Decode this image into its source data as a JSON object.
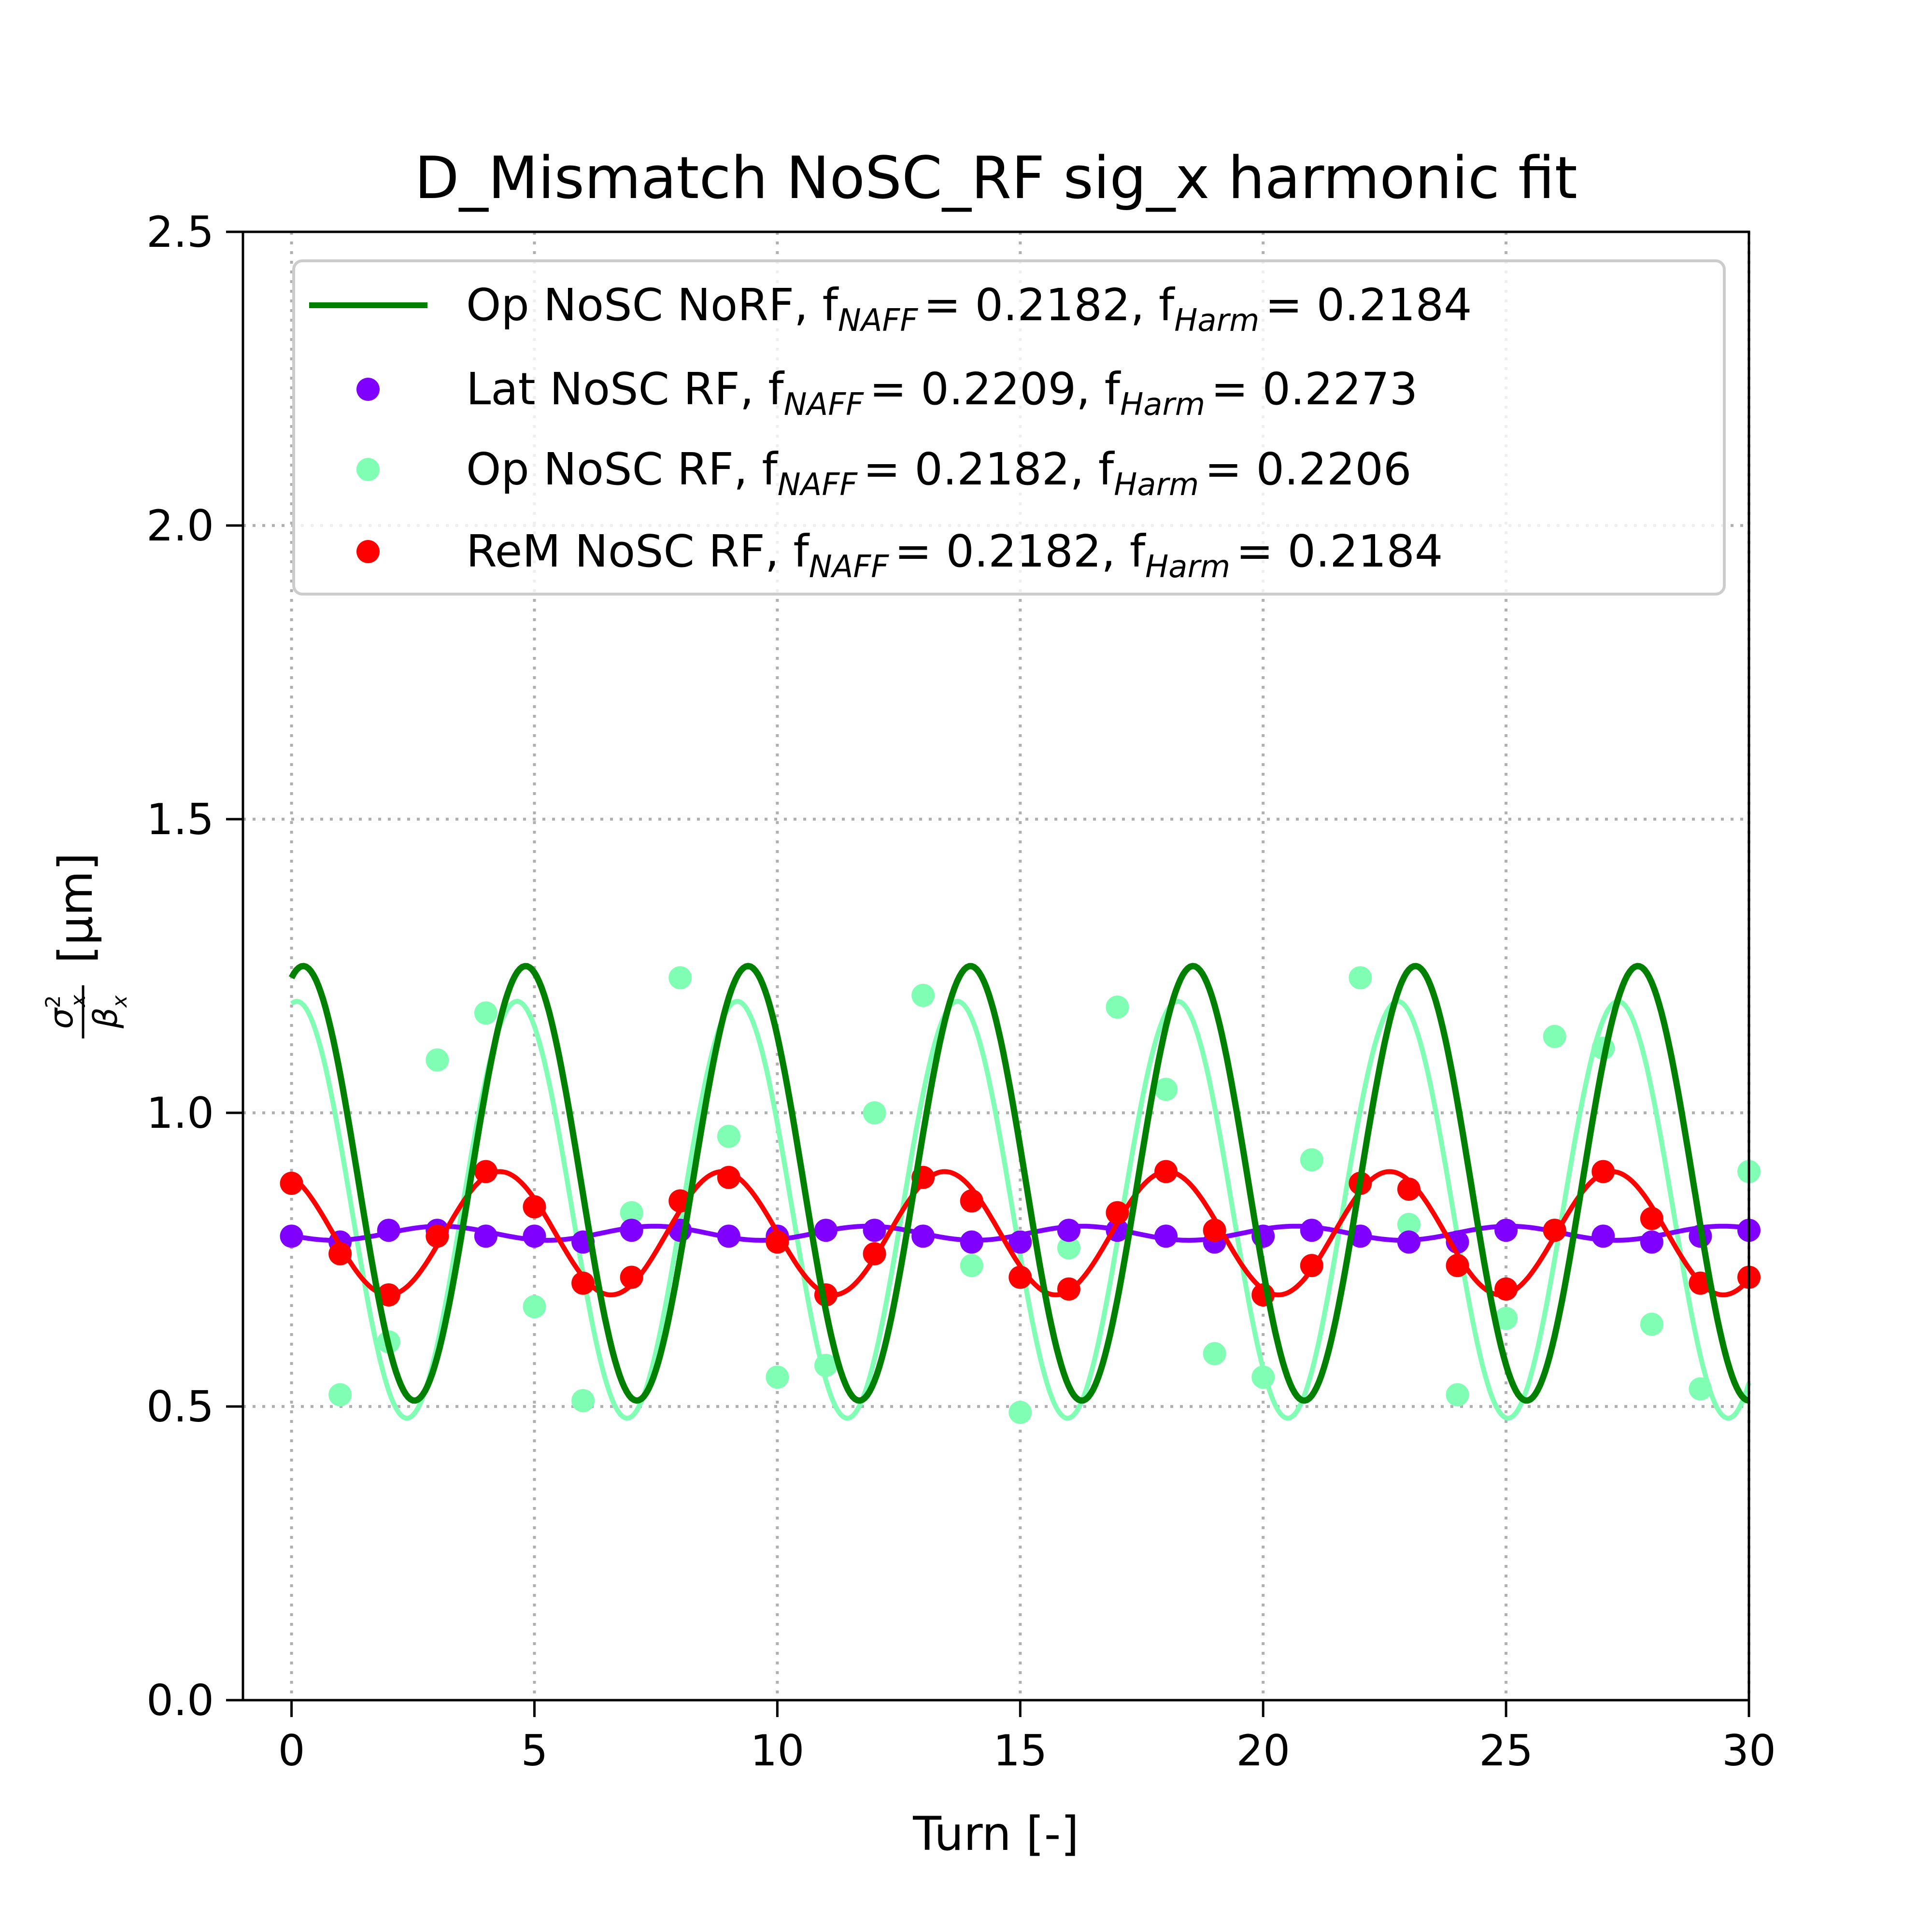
{
  "chart_data": {
    "type": "line",
    "title": "D_Mismatch NoSC_RF sig_x harmonic fit",
    "xlabel": "Turn [-]",
    "ylabel": {
      "num_base": "σ",
      "num_sup": "2",
      "num_sub": "x",
      "den_base": "β",
      "den_sub": "x",
      "unit": "[μm]"
    },
    "xlim": [
      -1,
      30
    ],
    "ylim": [
      0,
      2.5
    ],
    "xticks": [
      0,
      5,
      10,
      15,
      20,
      25,
      30
    ],
    "xtick_labels": [
      "0",
      "5",
      "10",
      "15",
      "20",
      "25",
      "30"
    ],
    "yticks": [
      0.0,
      0.5,
      1.0,
      1.5,
      2.0,
      2.5
    ],
    "ytick_labels": [
      "0.0",
      "0.5",
      "1.0",
      "1.5",
      "2.0",
      "2.5"
    ],
    "grid": true,
    "legend_position": "top",
    "series": [
      {
        "name": "Op NoSC NoRF",
        "legend_prefix": "Op NoSC NoRF, f",
        "naff_sub": "NAFF",
        "naff_value": "= 0.2182, f",
        "harm_sub": "Harm",
        "harm_value": "=  0.2184",
        "color": "#008000",
        "kind": "fit_line",
        "fit": {
          "mean": 0.88,
          "amp": 0.37,
          "freq": 0.2184,
          "phase": -0.33
        },
        "x_start": 0,
        "x_end": 30
      },
      {
        "name": "Lat NoSC RF",
        "legend_prefix": "Lat NoSC RF, f",
        "naff_sub": "NAFF",
        "naff_value": "= 0.2209, f",
        "harm_sub": "Harm",
        "harm_value": "= 0.2273",
        "color": "#7f00ff",
        "kind": "points_with_fit",
        "x": [
          0,
          1,
          2,
          3,
          4,
          5,
          6,
          7,
          8,
          9,
          10,
          11,
          12,
          13,
          14,
          15,
          16,
          17,
          18,
          19,
          20,
          21,
          22,
          23,
          24,
          25,
          26,
          27,
          28,
          29,
          30
        ],
        "y": [
          0.79,
          0.78,
          0.8,
          0.8,
          0.79,
          0.79,
          0.78,
          0.8,
          0.8,
          0.79,
          0.79,
          0.8,
          0.8,
          0.79,
          0.78,
          0.78,
          0.8,
          0.8,
          0.79,
          0.78,
          0.79,
          0.8,
          0.79,
          0.78,
          0.78,
          0.8,
          0.8,
          0.79,
          0.78,
          0.79,
          0.8
        ],
        "fit": {
          "mean": 0.795,
          "amp": 0.012,
          "freq": 0.2273,
          "phase": 1.9
        }
      },
      {
        "name": "Op NoSC RF",
        "legend_prefix": "Op NoSC RF, f",
        "naff_sub": "NAFF",
        "naff_value": "= 0.2182, f",
        "harm_sub": "Harm",
        "harm_value": "= 0.2206",
        "color": "#80ffb4",
        "kind": "points_with_fit",
        "x": [
          0,
          1,
          2,
          3,
          4,
          5,
          6,
          7,
          8,
          9,
          10,
          11,
          12,
          13,
          14,
          15,
          16,
          17,
          18,
          19,
          20,
          21,
          22,
          23,
          24,
          25,
          26,
          27,
          28,
          29,
          30
        ],
        "y": [
          0.88,
          0.52,
          0.61,
          1.09,
          1.17,
          0.67,
          0.51,
          0.83,
          1.23,
          0.96,
          0.55,
          0.57,
          1.0,
          1.2,
          0.74,
          0.49,
          0.77,
          1.18,
          1.04,
          0.59,
          0.55,
          0.92,
          1.23,
          0.81,
          0.52,
          0.65,
          1.13,
          1.11,
          0.64,
          0.53,
          0.9
        ],
        "fit": {
          "mean": 0.835,
          "amp": 0.355,
          "freq": 0.2206,
          "phase": -0.15
        }
      },
      {
        "name": "ReM NoSC RF",
        "legend_prefix": "ReM NoSC RF, f",
        "naff_sub": "NAFF",
        "naff_value": "= 0.2182, f",
        "harm_sub": "Harm",
        "harm_value": "= 0.2184",
        "color": "#ff0000",
        "kind": "points_with_fit",
        "x": [
          0,
          1,
          2,
          3,
          4,
          5,
          6,
          7,
          8,
          9,
          10,
          11,
          12,
          13,
          14,
          15,
          16,
          17,
          18,
          19,
          20,
          21,
          22,
          23,
          24,
          25,
          26,
          27,
          28,
          29,
          30
        ],
        "y": [
          0.88,
          0.76,
          0.69,
          0.79,
          0.9,
          0.84,
          0.71,
          0.72,
          0.85,
          0.89,
          0.78,
          0.69,
          0.76,
          0.89,
          0.85,
          0.72,
          0.7,
          0.83,
          0.9,
          0.8,
          0.69,
          0.74,
          0.88,
          0.87,
          0.74,
          0.7,
          0.8,
          0.9,
          0.82,
          0.71,
          0.72
        ],
        "fit": {
          "mean": 0.795,
          "amp": 0.105,
          "freq": 0.2184,
          "phase": 0.4
        }
      }
    ]
  }
}
